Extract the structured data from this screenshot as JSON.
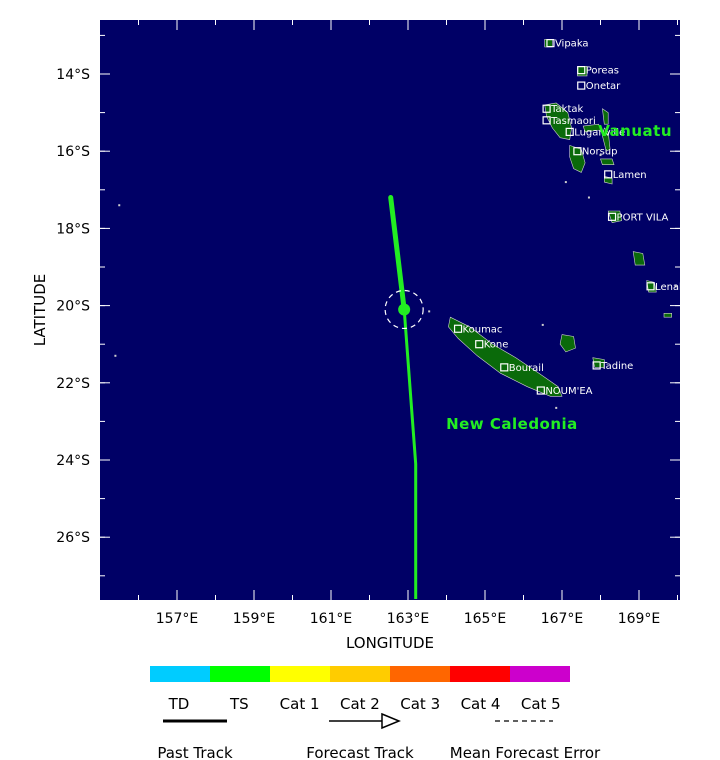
{
  "map": {
    "xlabel": "LONGITUDE",
    "ylabel": "LATITUDE",
    "x_ticks": [
      {
        "lon": 157,
        "label": "157°E"
      },
      {
        "lon": 159,
        "label": "159°E"
      },
      {
        "lon": 161,
        "label": "161°E"
      },
      {
        "lon": 163,
        "label": "163°E"
      },
      {
        "lon": 165,
        "label": "165°E"
      },
      {
        "lon": 167,
        "label": "167°E"
      },
      {
        "lon": 169,
        "label": "169°E"
      }
    ],
    "y_ticks": [
      {
        "lat": -14,
        "label": "14°S"
      },
      {
        "lat": -16,
        "label": "16°S"
      },
      {
        "lat": -18,
        "label": "18°S"
      },
      {
        "lat": -20,
        "label": "20°S"
      },
      {
        "lat": -22,
        "label": "22°S"
      },
      {
        "lat": -24,
        "label": "24°S"
      },
      {
        "lat": -26,
        "label": "26°S"
      }
    ],
    "regions": [
      {
        "name": "Vanuatu",
        "lon": 168.9,
        "lat": -15.6
      },
      {
        "name": "New Caledonia",
        "lon": 165.7,
        "lat": -23.2
      }
    ],
    "cities": [
      {
        "name": "Vipaka",
        "lon": 166.7,
        "lat": -13.2
      },
      {
        "name": "Poreas",
        "lon": 167.5,
        "lat": -13.9
      },
      {
        "name": "Onetar",
        "lon": 167.5,
        "lat": -14.3
      },
      {
        "name": "Taktak",
        "lon": 166.6,
        "lat": -14.9
      },
      {
        "name": "Tasmaori",
        "lon": 166.6,
        "lat": -15.2
      },
      {
        "name": "Luganville",
        "lon": 167.2,
        "lat": -15.5
      },
      {
        "name": "Norsup",
        "lon": 167.4,
        "lat": -16.0
      },
      {
        "name": "Lamen",
        "lon": 168.2,
        "lat": -16.6
      },
      {
        "name": "PORT VILA",
        "lon": 168.3,
        "lat": -17.7
      },
      {
        "name": "Lenakel",
        "lon": 169.3,
        "lat": -19.5
      },
      {
        "name": "Koumac",
        "lon": 164.3,
        "lat": -20.6
      },
      {
        "name": "Kone",
        "lon": 164.85,
        "lat": -21.0
      },
      {
        "name": "Bourail",
        "lon": 165.5,
        "lat": -21.6
      },
      {
        "name": "NOUM'EA",
        "lon": 166.45,
        "lat": -22.2
      },
      {
        "name": "Tadine",
        "lon": 167.9,
        "lat": -21.55
      }
    ],
    "past_track": [
      {
        "lon": 162.55,
        "lat": -17.2
      },
      {
        "lon": 162.9,
        "lat": -20.1
      }
    ],
    "forecast_track": [
      {
        "lon": 162.9,
        "lat": -20.1
      },
      {
        "lon": 163.2,
        "lat": -24.1
      },
      {
        "lon": 163.2,
        "lat": -27.6
      }
    ],
    "current_position": {
      "lon": 162.9,
      "lat": -20.1
    },
    "colors": {
      "ocean": "#000066",
      "land": "#0a6a0a",
      "track": "#22ee22",
      "region_label": "#22ee22"
    }
  },
  "legend": {
    "scale": [
      {
        "label": "TD",
        "color": "#00ccff"
      },
      {
        "label": "TS",
        "color": "#00ff00"
      },
      {
        "label": "Cat 1",
        "color": "#ffff00"
      },
      {
        "label": "Cat 2",
        "color": "#ffcc00"
      },
      {
        "label": "Cat 3",
        "color": "#ff6600"
      },
      {
        "label": "Cat 4",
        "color": "#ff0000"
      },
      {
        "label": "Cat 5",
        "color": "#cc00cc"
      }
    ],
    "past_track_label": "Past Track",
    "forecast_track_label": "Forecast Track",
    "mean_error_label": "Mean Forecast Error"
  }
}
